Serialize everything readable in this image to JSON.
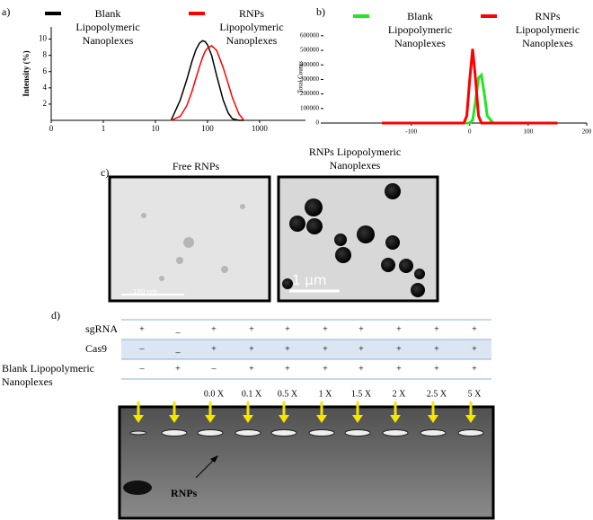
{
  "panel_labels": [
    "a)",
    "b)",
    "c)",
    "d)"
  ],
  "chart_data": [
    {
      "type": "line",
      "ylabel": "Intensity (%)",
      "xscale": "log",
      "legend": "top",
      "x": [
        20,
        30,
        40,
        50,
        60,
        70,
        80,
        90,
        100,
        120,
        150,
        200,
        250,
        300,
        400,
        500
      ],
      "series": [
        {
          "name": "Blank Lipopolymeric Nanoplexes",
          "color": "#000000",
          "values": [
            0,
            2.5,
            5,
            7.2,
            8.7,
            9.5,
            9.8,
            9.7,
            9.3,
            8,
            5.5,
            2.5,
            0.9,
            0.2,
            0,
            0
          ]
        },
        {
          "name": "RNPs Lipopolymeric Nanoplexes",
          "color": "#ff0000",
          "values": [
            0,
            0.5,
            1.8,
            3.5,
            5.2,
            6.6,
            7.7,
            8.5,
            8.9,
            9.2,
            8.6,
            6.5,
            4.5,
            2.8,
            0.8,
            0
          ]
        }
      ],
      "xlim": [
        0.1,
        7600
      ],
      "xticks": [
        {
          "value": 0.1,
          "label": "0"
        },
        1,
        10,
        100,
        1000
      ],
      "ylim": [
        0,
        11.5
      ],
      "yticks": [
        2,
        4,
        6,
        8,
        10
      ]
    },
    {
      "type": "line",
      "ylabel": "Total Counts",
      "legend": "top",
      "x": [
        -150,
        -20,
        -10,
        -5,
        0,
        5,
        10,
        15,
        20,
        25,
        30,
        40,
        150
      ],
      "series": [
        {
          "name": "Blank Lipopolymeric Nanoplexes",
          "color": "#22e622",
          "values": [
            0,
            0,
            0,
            0,
            0,
            20000,
            150000,
            310000,
            330000,
            200000,
            50000,
            0,
            0
          ]
        },
        {
          "name": "RNPs Lipopolymeric Nanoplexes",
          "color": "#ff0000",
          "values": [
            0,
            0,
            0,
            50000,
            300000,
            510000,
            300000,
            50000,
            0,
            0,
            0,
            0,
            0
          ]
        }
      ],
      "xlim": [
        -250,
        200
      ],
      "xticks": [
        -100,
        0,
        100,
        200
      ],
      "ylim": [
        0,
        630000
      ],
      "yticks": [
        0,
        100000,
        200000,
        300000,
        400000,
        500000,
        600000
      ]
    }
  ],
  "tem": {
    "images": [
      {
        "title": "Free RNPs",
        "scale_bar": "100 nm"
      },
      {
        "title": "RNPs  Lipopolymeric Nanoplexes",
        "scale_bar": "1 μm"
      }
    ]
  },
  "gel": {
    "rows": [
      {
        "label": "sgRNA",
        "cells": [
          "+",
          "_",
          "+",
          "+",
          "+",
          "+",
          "+",
          "+",
          "+",
          "+"
        ]
      },
      {
        "label": "Cas9",
        "cells": [
          "–",
          "_",
          "+",
          "+",
          "+",
          "+",
          "+",
          "+",
          "+",
          "+"
        ]
      },
      {
        "label": "Blank  Lipopolymeric Nanoplexes",
        "cells": [
          "–",
          "+",
          "–",
          "+",
          "+",
          "+",
          "+",
          "+",
          "+",
          "+"
        ]
      }
    ],
    "ratios": [
      "0.0 X",
      "0.1 X",
      "0.5 X",
      "1 X",
      "1.5 X",
      "2 X",
      "2.5 X",
      "5 X"
    ],
    "band_label": "RNPs"
  }
}
